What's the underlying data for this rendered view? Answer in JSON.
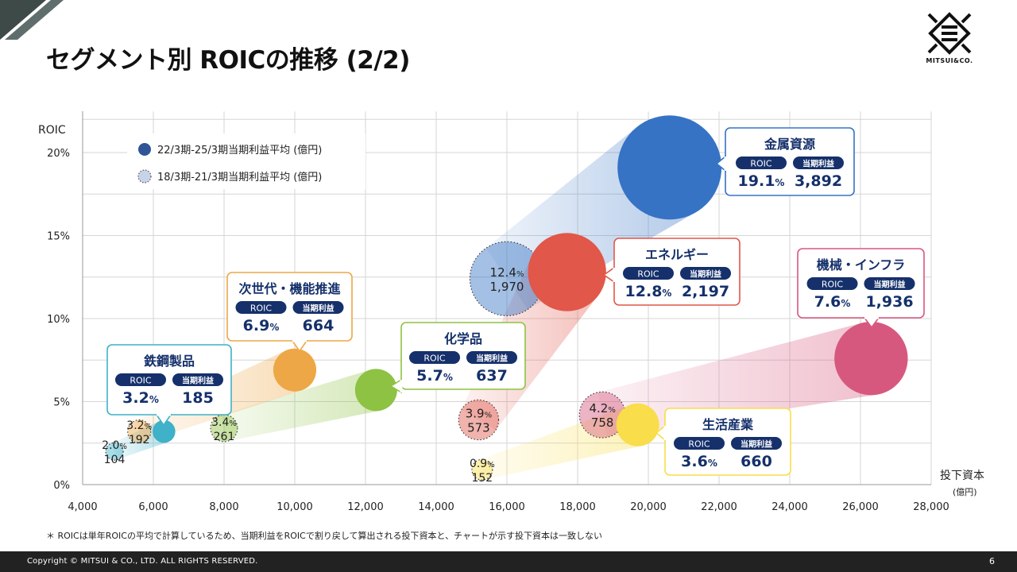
{
  "page": {
    "title": "セグメント別 ROICの推移 (2/2)",
    "logo_text": "MITSUI&CO.",
    "footnote": "＊ ROICは単年ROICの平均で計算しているため、当期利益をROICで割り戻して算出される投下資本と、チャートが示す投下資本は一致しない",
    "copyright": "Copyright © MITSUI & CO., LTD. ALL RIGHTS RESERVED.",
    "page_number": "6"
  },
  "chart_data": {
    "type": "scatter",
    "ylabel": "ROIC",
    "xlabel": "投下資本",
    "xunit": "(億円)",
    "xlim": [
      4000,
      28000
    ],
    "ylim": [
      0,
      20
    ],
    "xticks": [
      4000,
      6000,
      8000,
      10000,
      12000,
      14000,
      16000,
      18000,
      20000,
      22000,
      24000,
      26000,
      28000
    ],
    "xtick_labels": [
      "4,000",
      "6,000",
      "8,000",
      "10,000",
      "12,000",
      "14,000",
      "16,000",
      "18,000",
      "20,000",
      "22,000",
      "24,000",
      "26,000",
      "28,000"
    ],
    "yticks": [
      0,
      5,
      10,
      15,
      20
    ],
    "ytick_labels": [
      "0%",
      "5%",
      "10%",
      "15%",
      "20%"
    ],
    "grid": true,
    "legend_position": "top-left",
    "legend": [
      {
        "label": "22/3期-25/3期当期利益平均 (億円)",
        "style": "solid",
        "color": "#2f5597"
      },
      {
        "label": "18/3期-21/3期当期利益平均 (億円)",
        "style": "dotted",
        "color": "#c8d2e8"
      }
    ],
    "badge_roic": "ROIC",
    "badge_profit": "当期利益",
    "series": [
      {
        "name": "鉄鋼製品",
        "color": "#3fb1c8",
        "current": {
          "x": 6300,
          "y": 3.2,
          "roic": "3.2",
          "profit": "185",
          "profit_value": 185
        },
        "previous": {
          "x": 4900,
          "y": 2.0,
          "roic": "2.0",
          "profit": "104",
          "profit_value": 104
        }
      },
      {
        "name": "次世代・機能推進",
        "color": "#eea746",
        "current": {
          "x": 10000,
          "y": 6.9,
          "roic": "6.9",
          "profit": "664",
          "profit_value": 664
        },
        "previous": {
          "x": 5600,
          "y": 3.2,
          "roic": "3.2",
          "profit": "192",
          "profit_value": 192
        }
      },
      {
        "name": "化学品",
        "color": "#8dc242",
        "current": {
          "x": 12300,
          "y": 5.7,
          "roic": "5.7",
          "profit": "637",
          "profit_value": 637
        },
        "previous": {
          "x": 8000,
          "y": 3.4,
          "roic": "3.4",
          "profit": "261",
          "profit_value": 261
        }
      },
      {
        "name": "金属資源",
        "color": "#3673c4",
        "current": {
          "x": 20600,
          "y": 19.1,
          "roic": "19.1",
          "profit": "3,892",
          "profit_value": 3892
        },
        "previous": {
          "x": 16000,
          "y": 12.4,
          "roic": "12.4",
          "profit": "1,970",
          "profit_value": 1970
        }
      },
      {
        "name": "エネルギー",
        "color": "#e1574a",
        "current": {
          "x": 17700,
          "y": 12.8,
          "roic": "12.8",
          "profit": "2,197",
          "profit_value": 2197
        },
        "previous": {
          "x": 15200,
          "y": 3.9,
          "roic": "3.9",
          "profit": "573",
          "profit_value": 573
        }
      },
      {
        "name": "機械・インフラ",
        "color": "#d7587e",
        "current": {
          "x": 26300,
          "y": 7.6,
          "roic": "7.6",
          "profit": "1,936",
          "profit_value": 1936
        },
        "previous": {
          "x": 18700,
          "y": 4.2,
          "roic": "4.2",
          "profit": "758",
          "profit_value": 758
        }
      },
      {
        "name": "生活産業",
        "color": "#f9dd4a",
        "current": {
          "x": 19700,
          "y": 3.6,
          "roic": "3.6",
          "profit": "660",
          "profit_value": 660
        },
        "previous": {
          "x": 15300,
          "y": 0.9,
          "roic": "0.9",
          "profit": "152",
          "profit_value": 152
        }
      }
    ]
  }
}
